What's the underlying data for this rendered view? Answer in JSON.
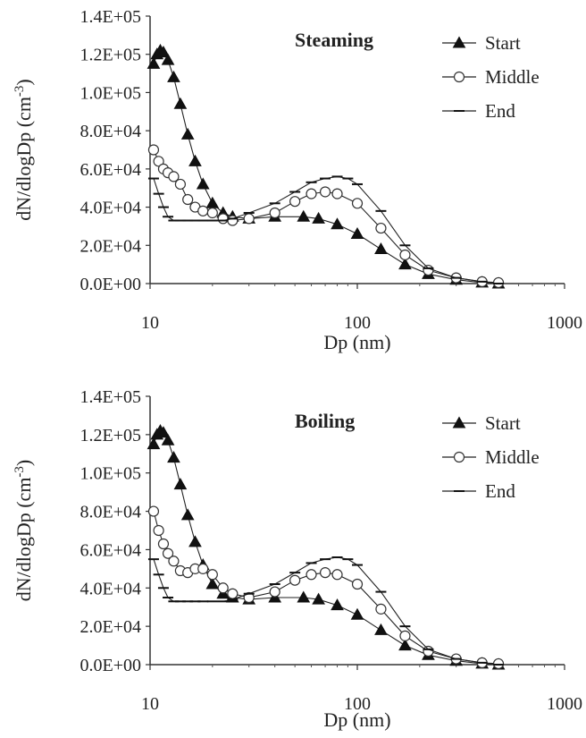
{
  "chart_data": [
    {
      "type": "line",
      "title": "Steaming",
      "xlabel": "Dp (nm)",
      "ylabel": "dN/dlogDp (cm",
      "ylabel_sup": "-3",
      "ylabel_close": ")",
      "xscale": "log",
      "xlim": [
        10,
        1000
      ],
      "ylim": [
        0,
        140000
      ],
      "xticks": [
        "10",
        "100",
        "1000"
      ],
      "yticks": [
        "0.0E+00",
        "2.0E+04",
        "4.0E+04",
        "6.0E+04",
        "8.0E+04",
        "1.0E+05",
        "1.2E+05",
        "1.4E+05"
      ],
      "grid": false,
      "legend_position": "top-right",
      "series": [
        {
          "name": "Start",
          "marker": "filled-triangle",
          "x": [
            10.4,
            10.8,
            11.2,
            11.6,
            12.2,
            13.0,
            14.0,
            15.2,
            16.5,
            18.0,
            20.0,
            22.5,
            25.0,
            30.0,
            40.0,
            55.0,
            65.0,
            80.0,
            100.0,
            130.0,
            170.0,
            220.0,
            300.0,
            400.0,
            480.0
          ],
          "y": [
            115000,
            120000,
            122000,
            121000,
            117000,
            108000,
            94000,
            78000,
            64000,
            52000,
            42000,
            37000,
            35000,
            34000,
            35000,
            35000,
            34000,
            31000,
            26000,
            18000,
            10000,
            5000,
            2000,
            500,
            0
          ]
        },
        {
          "name": "Middle",
          "marker": "open-circle",
          "x": [
            10.4,
            11.0,
            11.6,
            12.2,
            13.0,
            14.0,
            15.2,
            16.5,
            18.0,
            20.0,
            22.5,
            25.0,
            30.0,
            40.0,
            50.0,
            60.0,
            70.0,
            80.0,
            100.0,
            130.0,
            170.0,
            220.0,
            300.0,
            400.0,
            480.0
          ],
          "y": [
            70000,
            64000,
            60000,
            58000,
            56000,
            52000,
            44000,
            40000,
            38000,
            37000,
            34000,
            33000,
            34000,
            37000,
            43000,
            47000,
            48000,
            47000,
            42000,
            29000,
            15000,
            7000,
            3000,
            1000,
            500
          ]
        },
        {
          "name": "End",
          "marker": "dash",
          "x": [
            10.4,
            11.0,
            11.6,
            12.2,
            13.0,
            14.0,
            15.2,
            16.5,
            18.0,
            20.0,
            22.5,
            25.0,
            30.0,
            40.0,
            50.0,
            60.0,
            70.0,
            80.0,
            90.0,
            100.0,
            130.0,
            170.0,
            220.0,
            300.0,
            400.0,
            480.0
          ],
          "y": [
            55000,
            47000,
            40000,
            35000,
            33000,
            33000,
            33000,
            33000,
            33000,
            33000,
            33000,
            34000,
            37000,
            42000,
            48000,
            53000,
            55000,
            56000,
            55000,
            52000,
            38000,
            20000,
            8000,
            3000,
            1000,
            0
          ]
        }
      ]
    },
    {
      "type": "line",
      "title": "Boiling",
      "xlabel": "Dp (nm)",
      "ylabel": "dN/dlogDp (cm",
      "ylabel_sup": "-3",
      "ylabel_close": ")",
      "xscale": "log",
      "xlim": [
        10,
        1000
      ],
      "ylim": [
        0,
        140000
      ],
      "xticks": [
        "10",
        "100",
        "1000"
      ],
      "yticks": [
        "0.0E+00",
        "2.0E+04",
        "4.0E+04",
        "6.0E+04",
        "8.0E+04",
        "1.0E+05",
        "1.2E+05",
        "1.4E+05"
      ],
      "grid": false,
      "legend_position": "top-right",
      "series": [
        {
          "name": "Start",
          "marker": "filled-triangle",
          "x": [
            10.4,
            10.8,
            11.2,
            11.6,
            12.2,
            13.0,
            14.0,
            15.2,
            16.5,
            18.0,
            20.0,
            22.5,
            25.0,
            30.0,
            40.0,
            55.0,
            65.0,
            80.0,
            100.0,
            130.0,
            170.0,
            220.0,
            300.0,
            400.0,
            480.0
          ],
          "y": [
            115000,
            120000,
            122000,
            121000,
            117000,
            108000,
            94000,
            78000,
            64000,
            52000,
            42000,
            37000,
            35000,
            34000,
            35000,
            35000,
            34000,
            31000,
            26000,
            18000,
            10000,
            5000,
            2000,
            500,
            0
          ]
        },
        {
          "name": "Middle",
          "marker": "open-circle",
          "x": [
            10.4,
            11.0,
            11.6,
            12.2,
            13.0,
            14.0,
            15.2,
            16.5,
            18.0,
            20.0,
            22.5,
            25.0,
            30.0,
            40.0,
            50.0,
            60.0,
            70.0,
            80.0,
            100.0,
            130.0,
            170.0,
            220.0,
            300.0,
            400.0,
            480.0
          ],
          "y": [
            80000,
            70000,
            63000,
            58000,
            54000,
            49000,
            48000,
            50000,
            50000,
            47000,
            40000,
            37000,
            35000,
            38000,
            44000,
            47000,
            48000,
            47000,
            42000,
            29000,
            15000,
            7000,
            3000,
            1000,
            500
          ]
        },
        {
          "name": "End",
          "marker": "dash",
          "x": [
            10.4,
            11.0,
            11.6,
            12.2,
            13.0,
            14.0,
            15.2,
            16.5,
            18.0,
            20.0,
            22.5,
            25.0,
            30.0,
            40.0,
            50.0,
            60.0,
            70.0,
            80.0,
            90.0,
            100.0,
            130.0,
            170.0,
            220.0,
            300.0,
            400.0,
            480.0
          ],
          "y": [
            55000,
            47000,
            40000,
            35000,
            33000,
            33000,
            33000,
            33000,
            33000,
            33000,
            33000,
            34000,
            37000,
            42000,
            48000,
            53000,
            55000,
            56000,
            55000,
            52000,
            38000,
            20000,
            8000,
            3000,
            1000,
            0
          ]
        }
      ]
    }
  ]
}
